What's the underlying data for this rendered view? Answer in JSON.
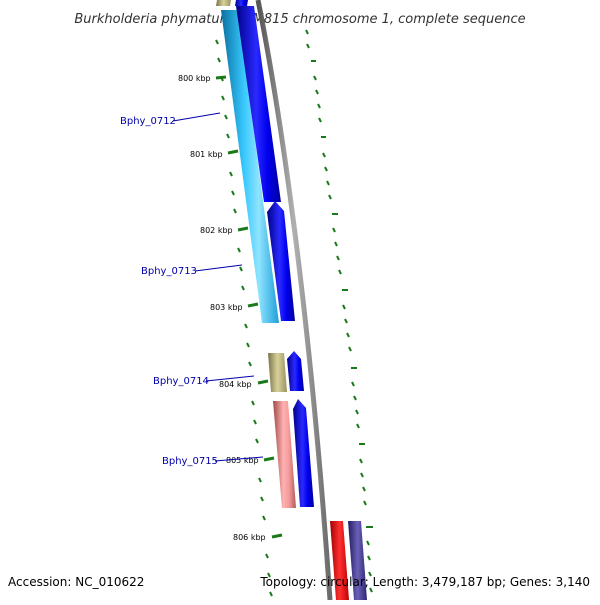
{
  "title": "Burkholderia phymatum STM815 chromosome 1, complete sequence",
  "footer": {
    "accession": "Accession: NC_010622",
    "topology": "Topology: circular; Length: 3,479,187 bp; Genes: 3,140"
  },
  "scale_labels": [
    "800 kbp",
    "801 kbp",
    "802 kbp",
    "803 kbp",
    "804 kbp",
    "805 kbp",
    "806 kbp"
  ],
  "gene_labels": [
    "Bphy_0712",
    "Bphy_0713",
    "Bphy_0714",
    "Bphy_0715"
  ],
  "colors": {
    "backbone": "#8a8a8a",
    "forward_cds": "#0000ff",
    "reverse_cds_light_blue": "#22b8f0",
    "khaki": "#b5ad6e",
    "pink": "#ee8888",
    "red": "#ff0000",
    "slate": "#4a3f9a",
    "tick": "#1a7a1a",
    "gene_label": "#0000aa"
  }
}
